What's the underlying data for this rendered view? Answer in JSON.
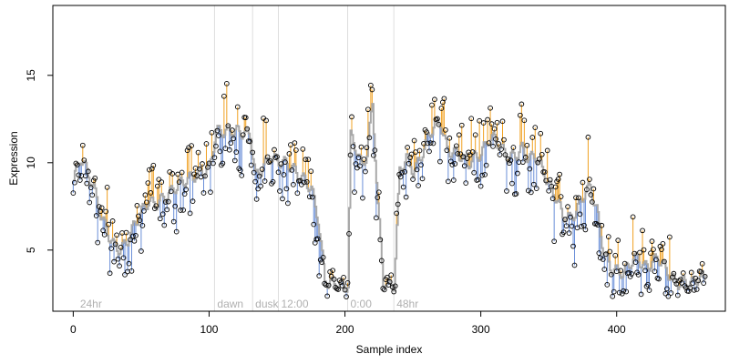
{
  "chart_data": {
    "type": "scatter",
    "title": "",
    "xlabel": "Sample index",
    "ylabel": "Expression",
    "xlim": [
      -15,
      480
    ],
    "ylim": [
      1.5,
      19
    ],
    "x_ticks": [
      0,
      100,
      200,
      300,
      400
    ],
    "y_ticks": [
      5,
      10,
      15
    ],
    "grid": false,
    "phase_markers": [
      {
        "x": 104,
        "label": "dawn"
      },
      {
        "x": 132,
        "label": "dusk"
      },
      {
        "x": 151,
        "label": "12:00"
      },
      {
        "x": 202,
        "label": "0:00"
      },
      {
        "x": 236,
        "label": "48hr"
      }
    ],
    "phase_start_label": {
      "x": 3,
      "label": "24hr"
    },
    "colors": {
      "fitted_line": "#a8a8a8",
      "residual_above": "#f0a020",
      "residual_below": "#6a8fd8",
      "point_stroke": "#000000",
      "marker_line": "#dedede",
      "phase_label": "#b0b0b0"
    },
    "series": [
      {
        "name": "",
        "anchors": [
          [
            0,
            9.0
          ],
          [
            5,
            10.3
          ],
          [
            10,
            9.5
          ],
          [
            15,
            8.5
          ],
          [
            20,
            7.0
          ],
          [
            25,
            6.0
          ],
          [
            30,
            5.2
          ],
          [
            35,
            5.0
          ],
          [
            40,
            5.6
          ],
          [
            45,
            6.5
          ],
          [
            50,
            7.2
          ],
          [
            55,
            7.8
          ],
          [
            60,
            7.6
          ],
          [
            65,
            7.9
          ],
          [
            70,
            8.2
          ],
          [
            75,
            8.6
          ],
          [
            80,
            8.9
          ],
          [
            85,
            9.1
          ],
          [
            90,
            9.3
          ],
          [
            95,
            9.5
          ],
          [
            100,
            9.7
          ],
          [
            105,
            11.8
          ],
          [
            110,
            11.8
          ],
          [
            115,
            11.8
          ],
          [
            120,
            11.8
          ],
          [
            125,
            11.7
          ],
          [
            130,
            11.6
          ],
          [
            134,
            9.2
          ],
          [
            140,
            9.8
          ],
          [
            145,
            10.3
          ],
          [
            150,
            10.1
          ],
          [
            155,
            10.0
          ],
          [
            160,
            9.8
          ],
          [
            165,
            9.3
          ],
          [
            170,
            9.0
          ],
          [
            175,
            8.5
          ],
          [
            180,
            6.8
          ],
          [
            185,
            3.2
          ],
          [
            190,
            3.1
          ],
          [
            195,
            3.0
          ],
          [
            200,
            2.9
          ],
          [
            202,
            3.0
          ],
          [
            204,
            11.5
          ],
          [
            208,
            10.8
          ],
          [
            212,
            9.8
          ],
          [
            216,
            10.5
          ],
          [
            220,
            13.4
          ],
          [
            224,
            7.5
          ],
          [
            228,
            3.2
          ],
          [
            232,
            3.0
          ],
          [
            236,
            3.0
          ],
          [
            240,
            9.5
          ],
          [
            245,
            10.3
          ],
          [
            250,
            9.5
          ],
          [
            255,
            10.2
          ],
          [
            260,
            11.3
          ],
          [
            265,
            12.1
          ],
          [
            270,
            12.3
          ],
          [
            275,
            10.7
          ],
          [
            280,
            10.6
          ],
          [
            285,
            10.4
          ],
          [
            290,
            9.9
          ],
          [
            295,
            10.3
          ],
          [
            300,
            10.5
          ],
          [
            305,
            11.3
          ],
          [
            310,
            11.4
          ],
          [
            315,
            10.8
          ],
          [
            320,
            10.3
          ],
          [
            325,
            10.4
          ],
          [
            330,
            10.8
          ],
          [
            335,
            10.2
          ],
          [
            340,
            10.4
          ],
          [
            345,
            9.6
          ],
          [
            350,
            8.7
          ],
          [
            355,
            8.0
          ],
          [
            360,
            7.0
          ],
          [
            365,
            6.8
          ],
          [
            370,
            7.2
          ],
          [
            375,
            8.1
          ],
          [
            380,
            8.6
          ],
          [
            385,
            7.3
          ],
          [
            390,
            5.0
          ],
          [
            395,
            4.0
          ],
          [
            400,
            3.8
          ],
          [
            405,
            3.7
          ],
          [
            410,
            4.3
          ],
          [
            415,
            4.6
          ],
          [
            420,
            4.0
          ],
          [
            425,
            4.2
          ],
          [
            430,
            4.6
          ],
          [
            435,
            4.0
          ],
          [
            440,
            3.4
          ],
          [
            445,
            3.1
          ],
          [
            450,
            3.2
          ],
          [
            455,
            3.1
          ],
          [
            460,
            3.4
          ],
          [
            465,
            3.5
          ]
        ]
      }
    ],
    "notes": ""
  }
}
